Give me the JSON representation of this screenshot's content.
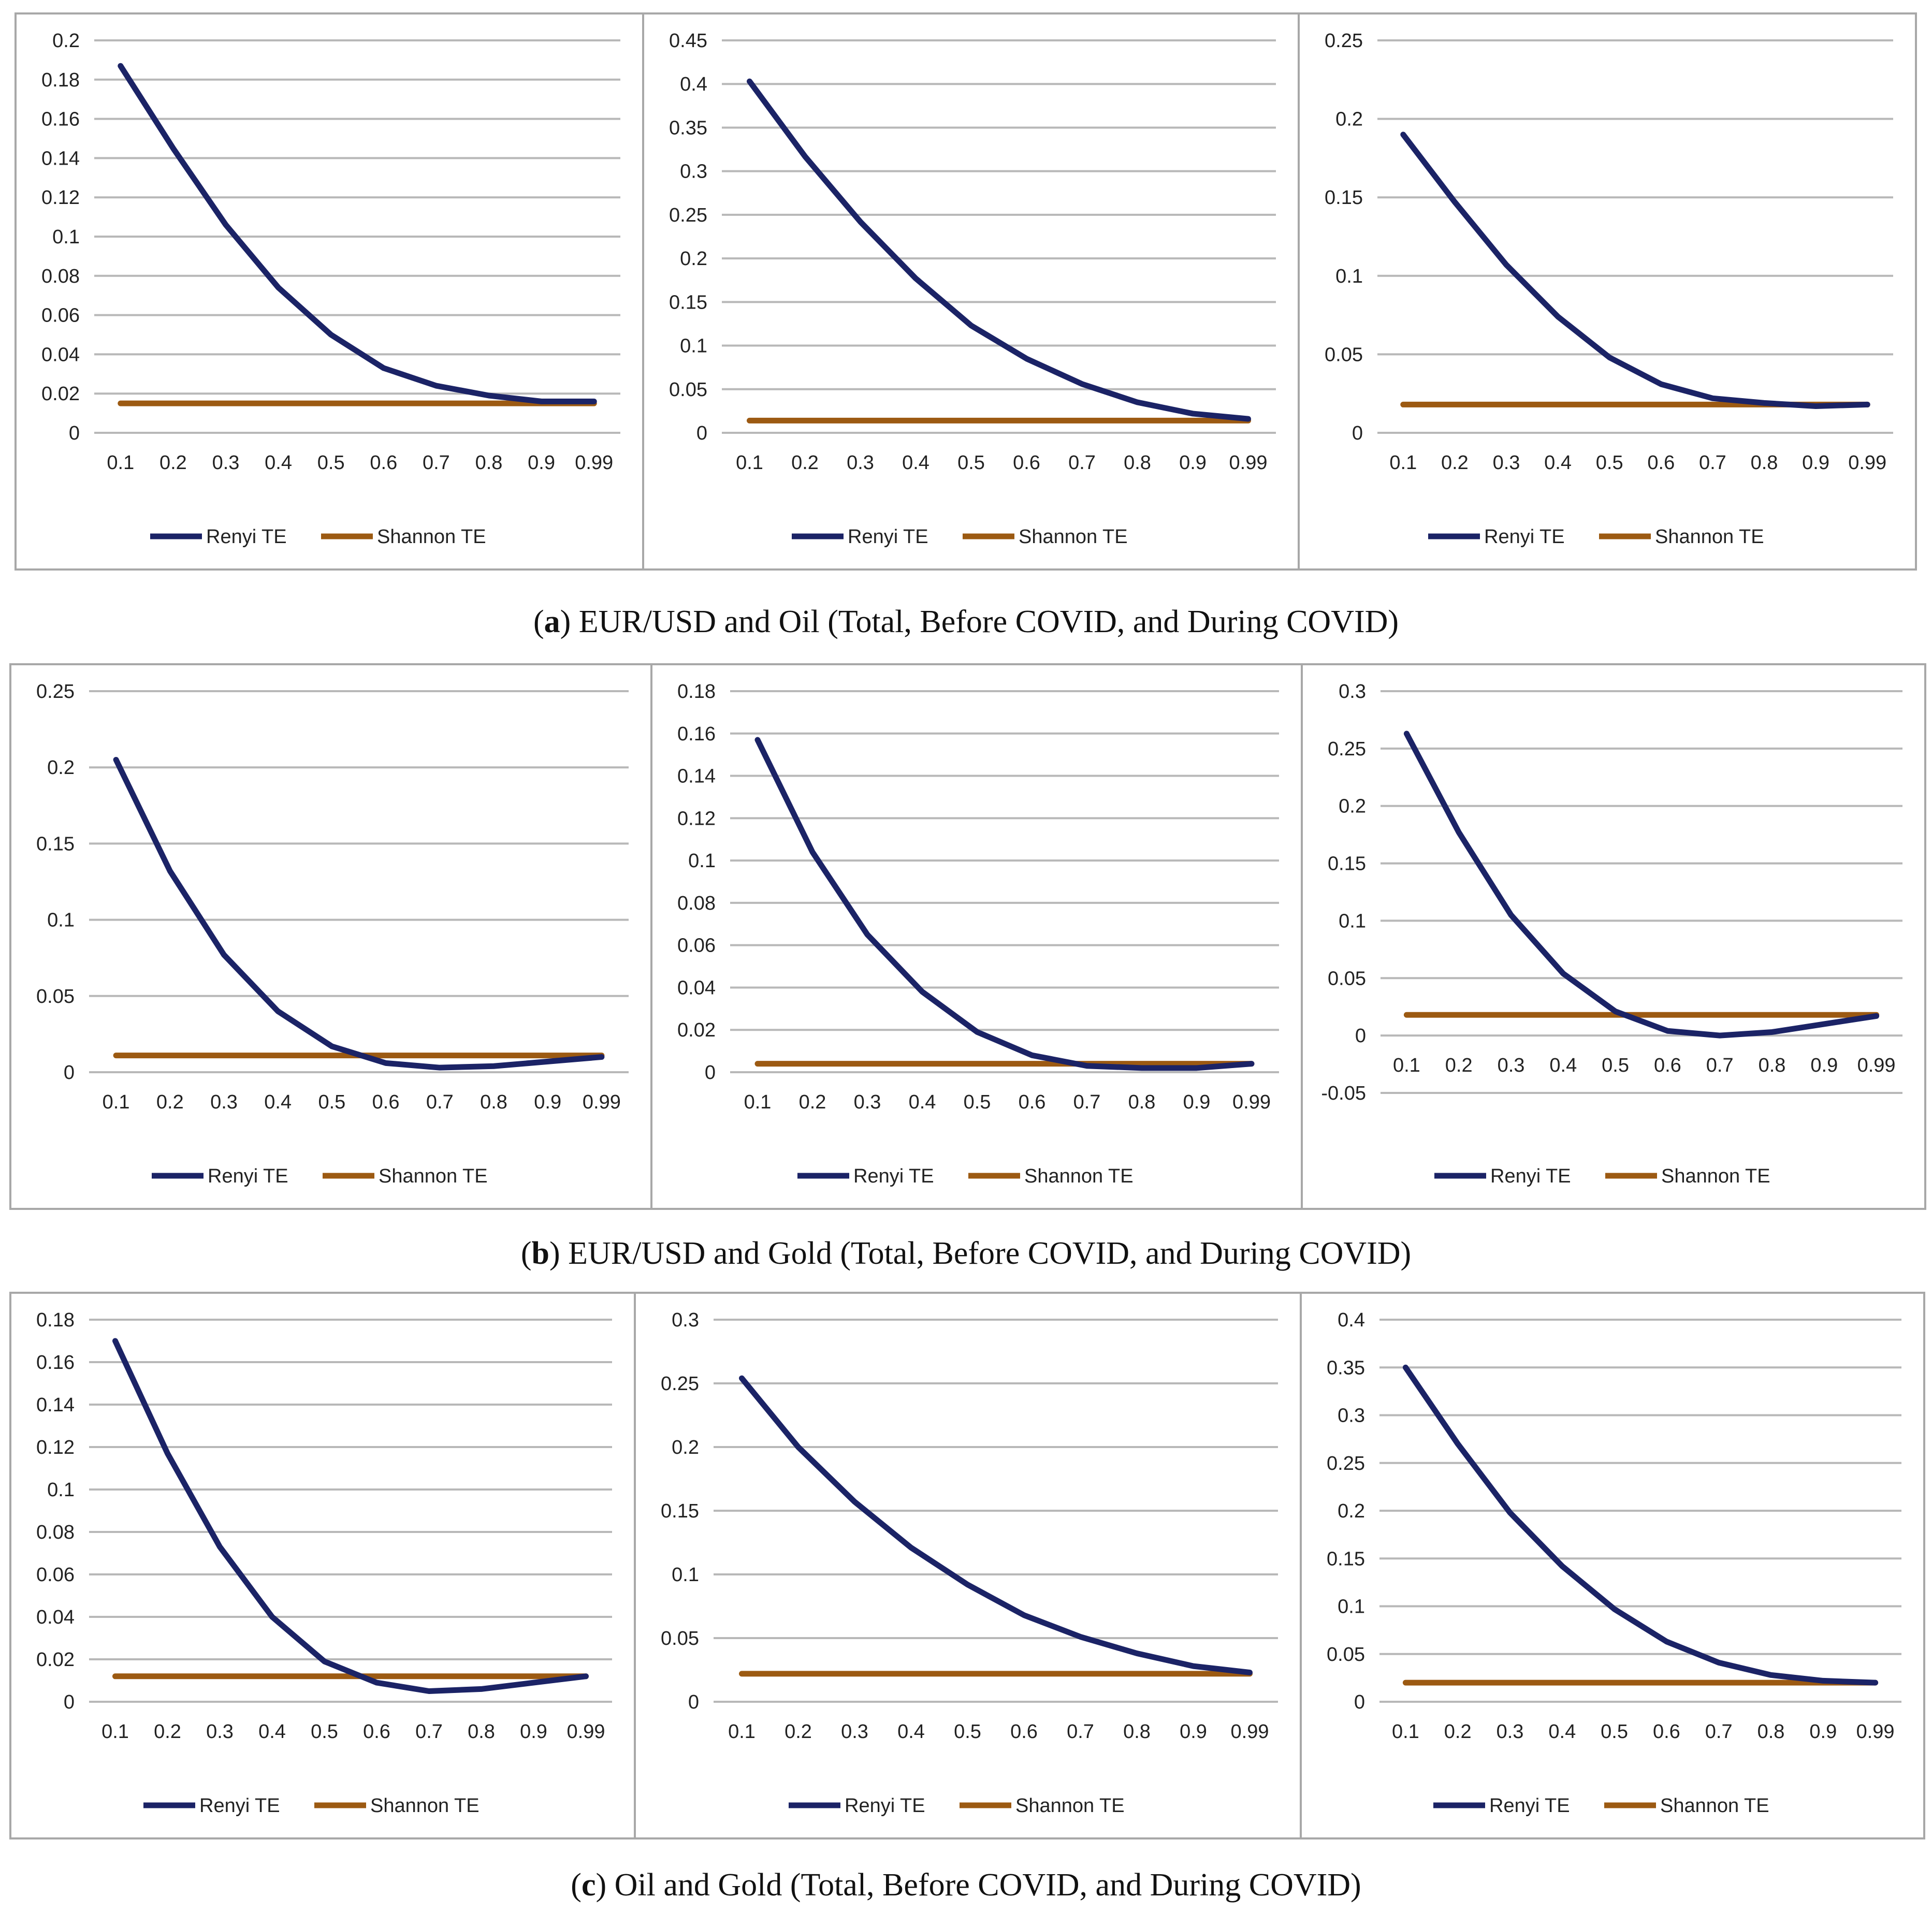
{
  "captions": [
    {
      "letter": "a",
      "text": "EUR/USD and Oil (Total, Before COVID, and During COVID)"
    },
    {
      "letter": "b",
      "text": "EUR/USD and Gold (Total, Before COVID, and During COVID)"
    },
    {
      "letter": "c",
      "text": "Oil and Gold (Total, Before COVID, and During COVID)"
    }
  ],
  "colors": {
    "renyi": "#1b2366",
    "shannon": "#9c5a12",
    "grid": "#b8b8b8"
  },
  "chart_data": [
    {
      "type": "line",
      "title": "",
      "xlabel": "",
      "ylabel": "",
      "categories": [
        "0.1",
        "0.2",
        "0.3",
        "0.4",
        "0.5",
        "0.6",
        "0.7",
        "0.8",
        "0.9",
        "0.99"
      ],
      "yticks": [
        "0",
        "0.02",
        "0.04",
        "0.06",
        "0.08",
        "0.1",
        "0.12",
        "0.14",
        "0.16",
        "0.18",
        "0.2"
      ],
      "ylim": [
        0,
        0.2
      ],
      "legend": "bottom-center",
      "series": [
        {
          "name": "Renyi TE",
          "values": [
            0.187,
            0.145,
            0.106,
            0.074,
            0.05,
            0.033,
            0.024,
            0.019,
            0.016,
            0.016
          ]
        },
        {
          "name": "Shannon TE",
          "values": [
            0.015,
            0.015,
            0.015,
            0.015,
            0.015,
            0.015,
            0.015,
            0.015,
            0.015,
            0.015
          ]
        }
      ]
    },
    {
      "type": "line",
      "title": "",
      "xlabel": "",
      "ylabel": "",
      "categories": [
        "0.1",
        "0.2",
        "0.3",
        "0.4",
        "0.5",
        "0.6",
        "0.7",
        "0.8",
        "0.9",
        "0.99"
      ],
      "yticks": [
        "0",
        "0.05",
        "0.1",
        "0.15",
        "0.2",
        "0.25",
        "0.3",
        "0.35",
        "0.4",
        "0.45"
      ],
      "ylim": [
        0,
        0.45
      ],
      "legend": "bottom-center",
      "series": [
        {
          "name": "Renyi TE",
          "values": [
            0.403,
            0.317,
            0.242,
            0.177,
            0.123,
            0.085,
            0.056,
            0.035,
            0.022,
            0.016
          ]
        },
        {
          "name": "Shannon TE",
          "values": [
            0.014,
            0.014,
            0.014,
            0.014,
            0.014,
            0.014,
            0.014,
            0.014,
            0.014,
            0.014
          ]
        }
      ]
    },
    {
      "type": "line",
      "title": "",
      "xlabel": "",
      "ylabel": "",
      "categories": [
        "0.1",
        "0.2",
        "0.3",
        "0.4",
        "0.5",
        "0.6",
        "0.7",
        "0.8",
        "0.9",
        "0.99"
      ],
      "yticks": [
        "0",
        "0.05",
        "0.1",
        "0.15",
        "0.2",
        "0.25"
      ],
      "ylim": [
        0,
        0.25
      ],
      "legend": "bottom-center",
      "series": [
        {
          "name": "Renyi TE",
          "values": [
            0.19,
            0.147,
            0.107,
            0.074,
            0.048,
            0.031,
            0.022,
            0.019,
            0.017,
            0.018
          ]
        },
        {
          "name": "Shannon TE",
          "values": [
            0.018,
            0.018,
            0.018,
            0.018,
            0.018,
            0.018,
            0.018,
            0.018,
            0.018,
            0.018
          ]
        }
      ]
    },
    {
      "type": "line",
      "title": "",
      "xlabel": "",
      "ylabel": "",
      "categories": [
        "0.1",
        "0.2",
        "0.3",
        "0.4",
        "0.5",
        "0.6",
        "0.7",
        "0.8",
        "0.9",
        "0.99"
      ],
      "yticks": [
        "0",
        "0.05",
        "0.1",
        "0.15",
        "0.2",
        "0.25"
      ],
      "ylim": [
        0,
        0.25
      ],
      "legend": "bottom-center",
      "series": [
        {
          "name": "Renyi TE",
          "values": [
            0.205,
            0.132,
            0.077,
            0.04,
            0.017,
            0.006,
            0.003,
            0.004,
            0.007,
            0.01
          ]
        },
        {
          "name": "Shannon TE",
          "values": [
            0.011,
            0.011,
            0.011,
            0.011,
            0.011,
            0.011,
            0.011,
            0.011,
            0.011,
            0.011
          ]
        }
      ]
    },
    {
      "type": "line",
      "title": "",
      "xlabel": "",
      "ylabel": "",
      "categories": [
        "0.1",
        "0.2",
        "0.3",
        "0.4",
        "0.5",
        "0.6",
        "0.7",
        "0.8",
        "0.9",
        "0.99"
      ],
      "yticks": [
        "0",
        "0.02",
        "0.04",
        "0.06",
        "0.08",
        "0.1",
        "0.12",
        "0.14",
        "0.16",
        "0.18"
      ],
      "ylim": [
        0,
        0.18
      ],
      "legend": "bottom-center",
      "series": [
        {
          "name": "Renyi TE",
          "values": [
            0.157,
            0.104,
            0.065,
            0.038,
            0.019,
            0.008,
            0.003,
            0.002,
            0.002,
            0.004
          ]
        },
        {
          "name": "Shannon TE",
          "values": [
            0.004,
            0.004,
            0.004,
            0.004,
            0.004,
            0.004,
            0.004,
            0.004,
            0.004,
            0.004
          ]
        }
      ]
    },
    {
      "type": "line",
      "title": "",
      "xlabel": "",
      "ylabel": "",
      "categories": [
        "0.1",
        "0.2",
        "0.3",
        "0.4",
        "0.5",
        "0.6",
        "0.7",
        "0.8",
        "0.9",
        "0.99"
      ],
      "yticks": [
        "-0.05",
        "0",
        "0.05",
        "0.1",
        "0.15",
        "0.2",
        "0.25",
        "0.3"
      ],
      "ylim": [
        -0.05,
        0.3
      ],
      "legend": "bottom-center",
      "series": [
        {
          "name": "Renyi TE",
          "values": [
            0.263,
            0.177,
            0.105,
            0.054,
            0.021,
            0.004,
            0.0,
            0.003,
            0.01,
            0.017
          ]
        },
        {
          "name": "Shannon TE",
          "values": [
            0.018,
            0.018,
            0.018,
            0.018,
            0.018,
            0.018,
            0.018,
            0.018,
            0.018,
            0.018
          ]
        }
      ]
    },
    {
      "type": "line",
      "title": "",
      "xlabel": "",
      "ylabel": "",
      "categories": [
        "0.1",
        "0.2",
        "0.3",
        "0.4",
        "0.5",
        "0.6",
        "0.7",
        "0.8",
        "0.9",
        "0.99"
      ],
      "yticks": [
        "0",
        "0.02",
        "0.04",
        "0.06",
        "0.08",
        "0.1",
        "0.12",
        "0.14",
        "0.16",
        "0.18"
      ],
      "ylim": [
        0,
        0.18
      ],
      "legend": "bottom-center",
      "series": [
        {
          "name": "Renyi TE",
          "values": [
            0.17,
            0.117,
            0.073,
            0.04,
            0.019,
            0.009,
            0.005,
            0.006,
            0.009,
            0.012
          ]
        },
        {
          "name": "Shannon TE",
          "values": [
            0.012,
            0.012,
            0.012,
            0.012,
            0.012,
            0.012,
            0.012,
            0.012,
            0.012,
            0.012
          ]
        }
      ]
    },
    {
      "type": "line",
      "title": "",
      "xlabel": "",
      "ylabel": "",
      "categories": [
        "0.1",
        "0.2",
        "0.3",
        "0.4",
        "0.5",
        "0.6",
        "0.7",
        "0.8",
        "0.9",
        "0.99"
      ],
      "yticks": [
        "0",
        "0.05",
        "0.1",
        "0.15",
        "0.2",
        "0.25",
        "0.3"
      ],
      "ylim": [
        0,
        0.3
      ],
      "legend": "bottom-center",
      "series": [
        {
          "name": "Renyi TE",
          "values": [
            0.254,
            0.2,
            0.157,
            0.121,
            0.092,
            0.068,
            0.051,
            0.038,
            0.028,
            0.023
          ]
        },
        {
          "name": "Shannon TE",
          "values": [
            0.022,
            0.022,
            0.022,
            0.022,
            0.022,
            0.022,
            0.022,
            0.022,
            0.022,
            0.022
          ]
        }
      ]
    },
    {
      "type": "line",
      "title": "",
      "xlabel": "",
      "ylabel": "",
      "categories": [
        "0.1",
        "0.2",
        "0.3",
        "0.4",
        "0.5",
        "0.6",
        "0.7",
        "0.8",
        "0.9",
        "0.99"
      ],
      "yticks": [
        "0",
        "0.05",
        "0.1",
        "0.15",
        "0.2",
        "0.25",
        "0.3",
        "0.35",
        "0.4"
      ],
      "ylim": [
        0,
        0.4
      ],
      "legend": "bottom-center",
      "series": [
        {
          "name": "Renyi TE",
          "values": [
            0.35,
            0.27,
            0.198,
            0.142,
            0.097,
            0.063,
            0.041,
            0.028,
            0.022,
            0.02
          ]
        },
        {
          "name": "Shannon TE",
          "values": [
            0.02,
            0.02,
            0.02,
            0.02,
            0.02,
            0.02,
            0.02,
            0.02,
            0.02,
            0.02
          ]
        }
      ]
    }
  ]
}
